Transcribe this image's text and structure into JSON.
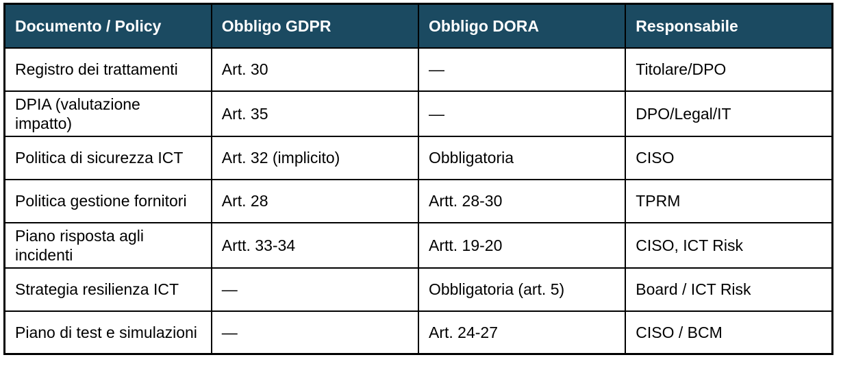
{
  "table": {
    "headers": [
      "Documento / Policy",
      "Obbligo GDPR",
      "Obbligo DORA",
      "Responsabile"
    ],
    "rows": [
      [
        "Registro dei trattamenti",
        "Art. 30",
        "—",
        "Titolare/DPO"
      ],
      [
        "DPIA (valutazione impatto)",
        "Art. 35",
        "—",
        "DPO/Legal/IT"
      ],
      [
        "Politica di sicurezza ICT",
        "Art. 32 (implicito)",
        "Obbligatoria",
        "CISO"
      ],
      [
        "Politica gestione fornitori",
        "Art. 28",
        "Artt. 28-30",
        "TPRM"
      ],
      [
        "Piano risposta agli incidenti",
        "Artt. 33-34",
        "Artt. 19-20",
        "CISO, ICT Risk"
      ],
      [
        "Strategia resilienza ICT",
        "—",
        "Obbligatoria (art. 5)",
        "Board / ICT Risk"
      ],
      [
        "Piano di test e simulazioni",
        "—",
        "Art. 24-27",
        "CISO / BCM"
      ]
    ],
    "colors": {
      "header_bg": "#1B4A61",
      "header_text": "#FFFFFF",
      "body_text": "#000000",
      "border": "#000000",
      "row_bg": "#FFFFFF"
    }
  }
}
